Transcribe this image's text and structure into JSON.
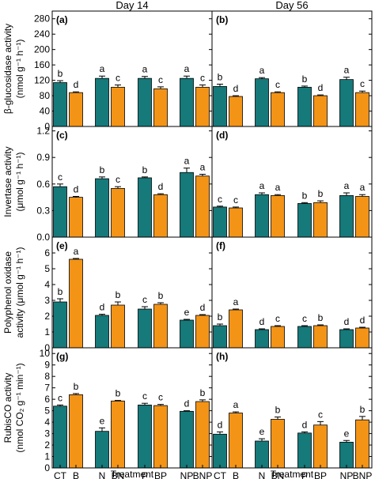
{
  "colors": {
    "no_biochar": "#16797a",
    "biochar": "#f39417",
    "frame": "#000000"
  },
  "columns": [
    "Day 14",
    "Day 56"
  ],
  "categories": [
    "CT",
    "B",
    "N",
    "BN",
    "P",
    "BP",
    "NP",
    "BNP"
  ],
  "xlabel": "Treatment",
  "rows": [
    {
      "ylabel_lines": [
        "β-glucosidase activity",
        "(nmol g⁻¹ h⁻¹)"
      ],
      "ylim": [
        0,
        300
      ],
      "yticks": [
        0,
        40,
        80,
        120,
        160,
        200,
        240,
        280
      ]
    },
    {
      "ylabel_lines": [
        "Invertase activity",
        "(μmol g⁻¹ h⁻¹)"
      ],
      "ylim": [
        0,
        1.25
      ],
      "yticks": [
        0.0,
        0.3,
        0.6,
        0.9,
        1.2
      ]
    },
    {
      "ylabel_lines": [
        "Polyphenol oxidase",
        "activity (μmol g⁻¹ h⁻¹)"
      ],
      "ylim": [
        0,
        7
      ],
      "yticks": [
        0,
        1,
        2,
        3,
        4,
        5,
        6
      ]
    },
    {
      "ylabel_lines": [
        "RubisCO activity",
        "(nmol CO₂ g⁻¹ min⁻¹)"
      ],
      "ylim": [
        0,
        10.5
      ],
      "yticks": [
        0,
        1,
        2,
        3,
        4,
        5,
        6,
        7,
        8,
        9,
        10
      ]
    }
  ],
  "chart_data": [
    {
      "type": "bar",
      "panel": "(a)",
      "column": "Day 14",
      "categories": [
        "CT",
        "B",
        "N",
        "BN",
        "P",
        "BP",
        "NP",
        "BNP"
      ],
      "values": [
        114,
        88,
        125,
        102,
        125,
        98,
        125,
        102
      ],
      "errors": [
        5,
        2,
        6,
        6,
        5,
        5,
        6,
        6
      ],
      "letters": [
        "b",
        "d",
        "a",
        "c",
        "a",
        "c",
        "a",
        "c"
      ],
      "ylim": [
        0,
        300
      ]
    },
    {
      "type": "bar",
      "panel": "(b)",
      "column": "Day 56",
      "categories": [
        "CT",
        "B",
        "N",
        "BN",
        "P",
        "BP",
        "NP",
        "BNP"
      ],
      "values": [
        104,
        78,
        124,
        88,
        102,
        80,
        122,
        88
      ],
      "errors": [
        6,
        2,
        3,
        2,
        3,
        2,
        6,
        4
      ],
      "letters": [
        "b",
        "d",
        "a",
        "c",
        "b",
        "d",
        "a",
        "c"
      ],
      "ylim": [
        0,
        300
      ]
    },
    {
      "type": "bar",
      "panel": "(c)",
      "column": "Day 14",
      "categories": [
        "CT",
        "B",
        "N",
        "BN",
        "P",
        "BP",
        "NP",
        "BNP"
      ],
      "values": [
        0.57,
        0.45,
        0.66,
        0.55,
        0.67,
        0.48,
        0.73,
        0.69
      ],
      "errors": [
        0.03,
        0.01,
        0.02,
        0.02,
        0.01,
        0.01,
        0.05,
        0.02
      ],
      "letters": [
        "c",
        "d",
        "b",
        "c",
        "b",
        "d",
        "a",
        "a"
      ],
      "ylim": [
        0,
        1.25
      ]
    },
    {
      "type": "bar",
      "panel": "(d)",
      "column": "Day 56",
      "categories": [
        "CT",
        "B",
        "N",
        "BN",
        "P",
        "BP",
        "NP",
        "BNP"
      ],
      "values": [
        0.34,
        0.33,
        0.48,
        0.47,
        0.38,
        0.39,
        0.47,
        0.46
      ],
      "errors": [
        0.01,
        0.01,
        0.02,
        0.01,
        0.01,
        0.02,
        0.03,
        0.02
      ],
      "letters": [
        "c",
        "c",
        "a",
        "a",
        "b",
        "b",
        "a",
        "a"
      ],
      "ylim": [
        0,
        1.25
      ]
    },
    {
      "type": "bar",
      "panel": "(e)",
      "column": "Day 14",
      "categories": [
        "CT",
        "B",
        "N",
        "BN",
        "P",
        "BP",
        "NP",
        "BNP"
      ],
      "values": [
        2.9,
        5.6,
        2.05,
        2.7,
        2.45,
        2.75,
        1.75,
        2.05
      ],
      "errors": [
        0.2,
        0.05,
        0.07,
        0.2,
        0.15,
        0.1,
        0.05,
        0.05
      ],
      "letters": [
        "b",
        "a",
        "d",
        "b",
        "c",
        "b",
        "e",
        "d"
      ],
      "ylim": [
        0,
        7
      ]
    },
    {
      "type": "bar",
      "panel": "(f)",
      "column": "Day 56",
      "categories": [
        "CT",
        "B",
        "N",
        "BN",
        "P",
        "BP",
        "NP",
        "BNP"
      ],
      "values": [
        1.4,
        2.4,
        1.15,
        1.35,
        1.35,
        1.4,
        1.15,
        1.25
      ],
      "errors": [
        0.1,
        0.05,
        0.05,
        0.05,
        0.05,
        0.05,
        0.05,
        0.05
      ],
      "letters": [
        "b",
        "a",
        "d",
        "c",
        "c",
        "b",
        "d",
        "d"
      ],
      "ylim": [
        0,
        7
      ]
    },
    {
      "type": "bar",
      "panel": "(g)",
      "column": "Day 14",
      "categories": [
        "CT",
        "B",
        "N",
        "BN",
        "P",
        "BP",
        "NP",
        "BNP"
      ],
      "values": [
        5.4,
        6.4,
        3.2,
        5.85,
        5.5,
        5.45,
        4.95,
        5.8
      ],
      "errors": [
        0.1,
        0.1,
        0.3,
        0.05,
        0.15,
        0.1,
        0.05,
        0.15
      ],
      "letters": [
        "c",
        "b",
        "e",
        "b",
        "c",
        "c",
        "d",
        "b"
      ],
      "ylim": [
        0,
        10.5
      ]
    },
    {
      "type": "bar",
      "panel": "(h)",
      "column": "Day 56",
      "categories": [
        "CT",
        "B",
        "N",
        "BN",
        "P",
        "BP",
        "NP",
        "BNP"
      ],
      "values": [
        2.95,
        4.8,
        2.35,
        4.25,
        3.05,
        3.75,
        2.25,
        4.2
      ],
      "errors": [
        0.2,
        0.1,
        0.2,
        0.2,
        0.1,
        0.3,
        0.15,
        0.3
      ],
      "letters": [
        "d",
        "a",
        "e",
        "b",
        "d",
        "c",
        "e",
        "b"
      ],
      "ylim": [
        0,
        10.5
      ]
    }
  ]
}
